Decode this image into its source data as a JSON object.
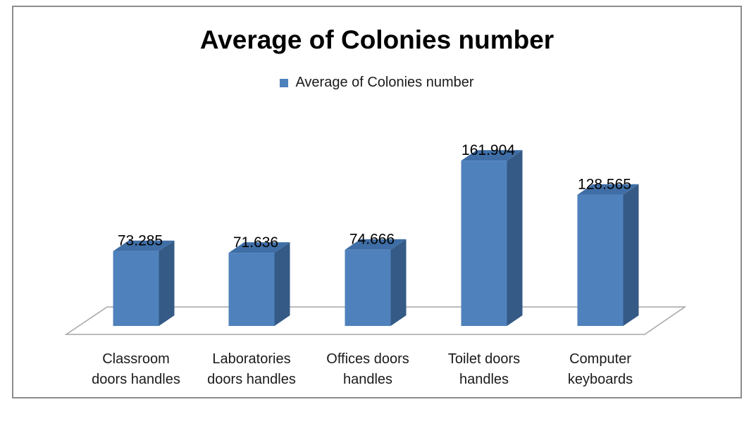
{
  "chart_data": {
    "type": "bar",
    "title": "Average of Colonies number",
    "categories": [
      [
        "Classroom",
        "doors handles"
      ],
      [
        "Laboratories",
        "doors handles"
      ],
      [
        "Offices doors",
        "handles"
      ],
      [
        "Toilet doors",
        "handles"
      ],
      [
        "Computer",
        "keyboards"
      ]
    ],
    "series": [
      {
        "name": "Average of Colonies number",
        "values": [
          73.285,
          71.636,
          74.666,
          161.904,
          128.565
        ],
        "labels": [
          "73.285",
          "71.636",
          "74.666",
          "161.904",
          "128.565"
        ],
        "color": "#4f81bd",
        "side_color": "#345a85",
        "top_color": "#3f6ea6"
      }
    ],
    "legend": "top",
    "grid": false,
    "style": "3d-column"
  }
}
